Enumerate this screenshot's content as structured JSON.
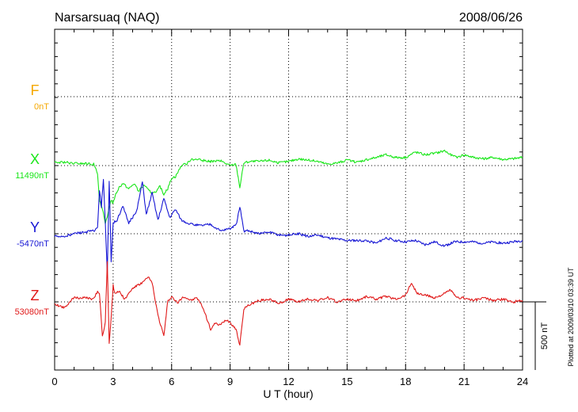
{
  "header": {
    "station": "Narsarsuaq (NAQ)",
    "date": "2008/06/26"
  },
  "footer": {
    "plotted": "Plotted at 2009/03/10 03:39 UT",
    "scale_label": "500 nT"
  },
  "colors": {
    "F": "#f5a800",
    "X": "#19e619",
    "Y": "#1515d4",
    "Z": "#e01818",
    "axis": "#000000"
  },
  "chart_data": {
    "type": "line",
    "title": "Narsarsuaq (NAQ)",
    "xlabel": "U T (hour)",
    "ylabel": "",
    "xlim": [
      0,
      24
    ],
    "xticks": [
      0,
      3,
      6,
      9,
      12,
      15,
      18,
      21,
      24
    ],
    "grid": true,
    "scale_bar_nT": 500,
    "series": [
      {
        "name": "F",
        "baseline_label": "0nT",
        "baseline": 0,
        "x": [],
        "y": []
      },
      {
        "name": "X",
        "baseline_label": "11490nT",
        "baseline": 11490,
        "x": [
          0,
          0.5,
          1,
          1.5,
          2,
          2.2,
          2.3,
          2.45,
          2.6,
          2.7,
          2.8,
          2.9,
          3.0,
          3.1,
          3.3,
          3.5,
          3.8,
          4.1,
          4.3,
          4.6,
          4.8,
          5.0,
          5.2,
          5.4,
          5.6,
          5.8,
          6.0,
          6.2,
          6.5,
          6.8,
          7.0,
          7.5,
          8.0,
          8.5,
          9.0,
          9.3,
          9.5,
          9.7,
          10.0,
          10.5,
          11.0,
          11.5,
          12.0,
          12.5,
          13.0,
          13.5,
          14.0,
          14.5,
          15.0,
          15.5,
          16.0,
          16.5,
          17.0,
          17.5,
          18.0,
          18.5,
          19.0,
          19.5,
          20.0,
          20.3,
          20.6,
          21.0,
          21.5,
          22.0,
          22.5,
          23.0,
          23.5,
          24.0
        ],
        "y": [
          20,
          25,
          15,
          15,
          10,
          -60,
          -250,
          -320,
          -430,
          -380,
          -300,
          -250,
          -280,
          -220,
          -160,
          -130,
          -170,
          -130,
          -190,
          -140,
          -180,
          -200,
          -200,
          -150,
          -210,
          -170,
          -90,
          -80,
          0,
          15,
          50,
          40,
          30,
          35,
          0,
          10,
          -160,
          20,
          30,
          30,
          40,
          20,
          30,
          50,
          40,
          30,
          10,
          20,
          40,
          25,
          45,
          60,
          80,
          60,
          60,
          100,
          80,
          90,
          110,
          80,
          60,
          80,
          60,
          50,
          60,
          45,
          50,
          60
        ]
      },
      {
        "name": "Y",
        "baseline_label": "-5470nT",
        "baseline": -5470,
        "x": [
          0,
          0.5,
          1,
          1.5,
          2,
          2.2,
          2.3,
          2.4,
          2.5,
          2.6,
          2.7,
          2.8,
          2.9,
          3.0,
          3.2,
          3.5,
          3.8,
          4.2,
          4.5,
          4.7,
          5.0,
          5.3,
          5.6,
          5.9,
          6.2,
          6.5,
          7.0,
          7.5,
          8.0,
          8.5,
          9.0,
          9.3,
          9.5,
          9.7,
          10.0,
          10.5,
          11.0,
          11.5,
          12.0,
          12.5,
          13.0,
          13.5,
          14.0,
          14.5,
          15.0,
          15.5,
          16.0,
          16.5,
          17.0,
          17.5,
          18.0,
          18.5,
          19.0,
          19.5,
          20.0,
          20.5,
          21.0,
          21.5,
          22.0,
          22.5,
          23.0,
          23.5,
          24.0
        ],
        "y": [
          -20,
          -20,
          0,
          10,
          20,
          40,
          320,
          200,
          400,
          80,
          -300,
          380,
          -200,
          80,
          100,
          200,
          80,
          160,
          380,
          140,
          300,
          100,
          260,
          120,
          180,
          100,
          70,
          60,
          70,
          20,
          40,
          60,
          200,
          20,
          20,
          0,
          10,
          -10,
          -10,
          0,
          -20,
          -10,
          -30,
          -40,
          -50,
          -50,
          -50,
          -70,
          -30,
          -50,
          -60,
          -50,
          -80,
          -60,
          -90,
          -60,
          -60,
          -60,
          -70,
          -60,
          -70,
          -60,
          -50
        ]
      },
      {
        "name": "Z",
        "baseline_label": "53080nT",
        "baseline": 53080,
        "x": [
          0,
          0.5,
          1,
          1.5,
          2.0,
          2.2,
          2.3,
          2.45,
          2.6,
          2.7,
          2.8,
          2.9,
          3.0,
          3.1,
          3.3,
          3.6,
          4.0,
          4.5,
          4.8,
          5.0,
          5.3,
          5.6,
          5.8,
          6.0,
          6.3,
          6.6,
          7.0,
          7.3,
          7.6,
          8.0,
          8.2,
          8.5,
          8.8,
          9.0,
          9.3,
          9.5,
          9.7,
          10.0,
          10.5,
          11.0,
          11.5,
          12.0,
          12.5,
          13.0,
          13.5,
          14.0,
          14.5,
          15.0,
          15.5,
          16.0,
          16.5,
          17.0,
          17.5,
          18.0,
          18.3,
          18.6,
          19.0,
          19.5,
          20.0,
          20.3,
          20.6,
          21.0,
          21.5,
          22.0,
          22.5,
          23.0,
          23.5,
          24.0
        ],
        "y": [
          -20,
          -40,
          30,
          30,
          20,
          80,
          60,
          -250,
          -150,
          300,
          -300,
          -110,
          120,
          60,
          80,
          20,
          100,
          140,
          180,
          140,
          -100,
          -250,
          0,
          40,
          -10,
          40,
          10,
          30,
          -40,
          -200,
          -160,
          -170,
          -130,
          -150,
          -200,
          -320,
          -50,
          -20,
          10,
          20,
          -10,
          20,
          0,
          20,
          10,
          30,
          0,
          20,
          10,
          40,
          20,
          40,
          20,
          50,
          140,
          60,
          50,
          30,
          60,
          90,
          30,
          30,
          10,
          30,
          10,
          20,
          0,
          10
        ]
      }
    ]
  }
}
